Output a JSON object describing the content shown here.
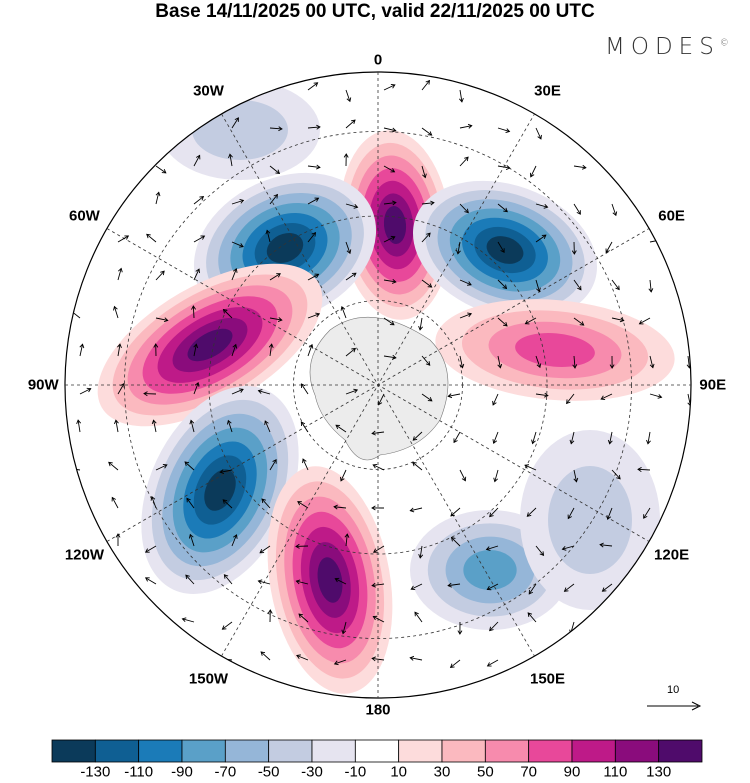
{
  "title": "Base 14/11/2025 00 UTC, valid 22/11/2025 00 UTC",
  "logo": "MODES",
  "logo_mark": "©",
  "longitude_labels": [
    {
      "text": "0",
      "lon": 0
    },
    {
      "text": "30E",
      "lon": 30
    },
    {
      "text": "60E",
      "lon": 60
    },
    {
      "text": "90E",
      "lon": 90
    },
    {
      "text": "120E",
      "lon": 120
    },
    {
      "text": "150E",
      "lon": 150
    },
    {
      "text": "180",
      "lon": 180
    },
    {
      "text": "150W",
      "lon": -150
    },
    {
      "text": "120W",
      "lon": -120
    },
    {
      "text": "90W",
      "lon": -90
    },
    {
      "text": "60W",
      "lon": -60
    },
    {
      "text": "30W",
      "lon": -30
    }
  ],
  "vector_reference": "10",
  "colorbar": {
    "labels": [
      "-130",
      "-110",
      "-90",
      "-70",
      "-50",
      "-30",
      "-10",
      "10",
      "30",
      "50",
      "70",
      "90",
      "110",
      "130"
    ],
    "colors": [
      "#0b3a5a",
      "#0f5f93",
      "#1b7bb8",
      "#5aa0c8",
      "#95b6d8",
      "#c3cce1",
      "#e6e4f0",
      "#ffffff",
      "#fddcdc",
      "#fbb9bf",
      "#f78bad",
      "#e8489a",
      "#be1a88",
      "#8a0c7c",
      "#4f0b6b"
    ]
  },
  "land_color": "#ececec"
}
